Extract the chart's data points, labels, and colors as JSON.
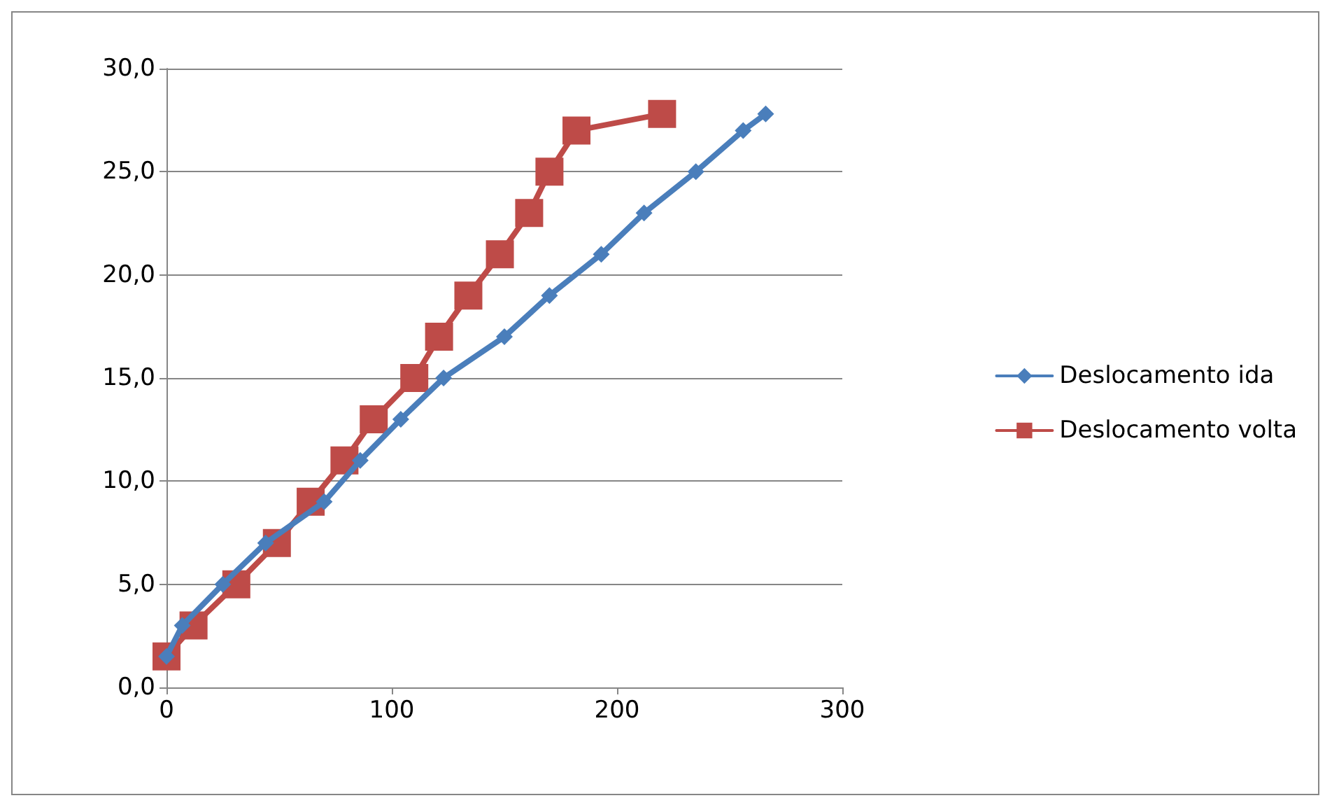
{
  "chart_data": {
    "type": "line",
    "xlim": [
      0,
      300
    ],
    "xticks": [
      0,
      100,
      200,
      300
    ],
    "ylim": [
      0,
      30
    ],
    "yticks": [
      {
        "value": 0,
        "label": "0,0"
      },
      {
        "value": 5,
        "label": "5,0"
      },
      {
        "value": 10,
        "label": "10,0"
      },
      {
        "value": 15,
        "label": "15,0"
      },
      {
        "value": 20,
        "label": "20,0"
      },
      {
        "value": 25,
        "label": "25,0"
      },
      {
        "value": 30,
        "label": "30,0"
      }
    ],
    "grid": "y",
    "legend": "right",
    "line_style": "solid",
    "series": [
      {
        "name": "Deslocamento ida",
        "color": "#4a7ebb",
        "marker": "diamond",
        "x": [
          0,
          7,
          25,
          44,
          70,
          86,
          104,
          123,
          150,
          170,
          193,
          212,
          235,
          256,
          266
        ],
        "values": [
          1.5,
          3,
          5,
          7,
          9,
          11,
          13,
          15,
          17,
          19,
          21,
          23,
          25,
          27,
          27.8
        ]
      },
      {
        "name": "Deslocamento volta",
        "color": "#be4b48",
        "marker": "square",
        "x": [
          0,
          12,
          31,
          49,
          64,
          79,
          92,
          110,
          121,
          134,
          148,
          161,
          170,
          182,
          220
        ],
        "values": [
          1.5,
          3,
          5,
          7,
          9,
          11,
          13,
          15,
          17,
          19,
          21,
          23,
          25,
          27,
          27.8
        ]
      }
    ]
  }
}
